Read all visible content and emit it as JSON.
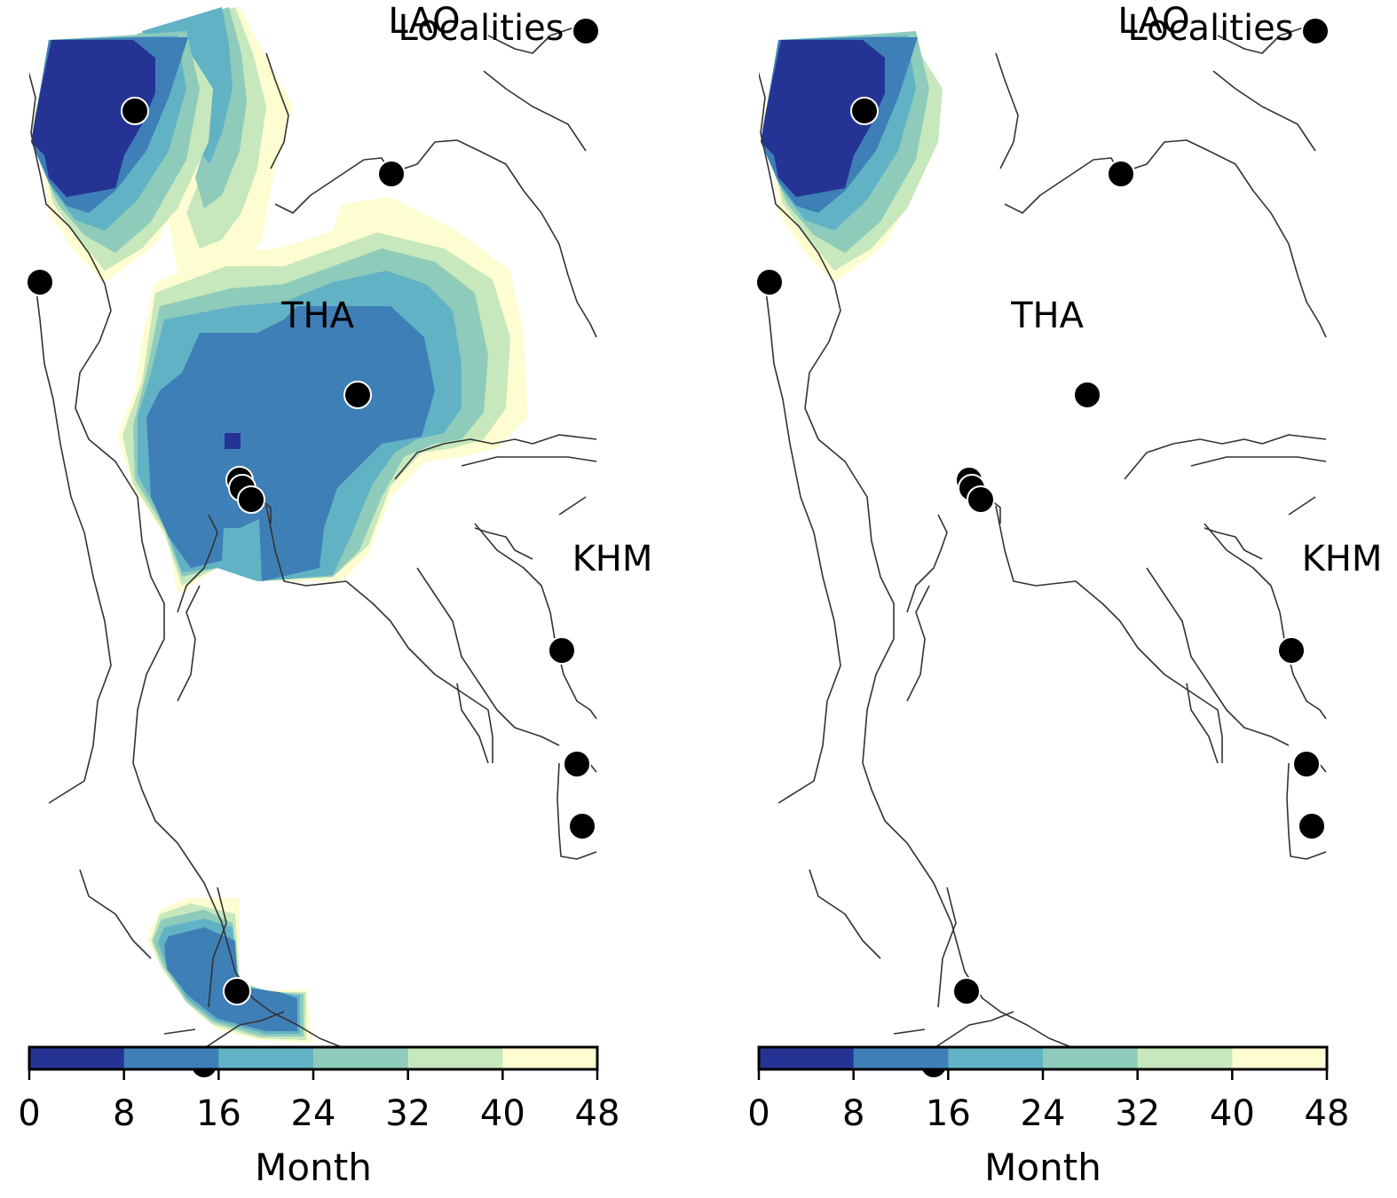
{
  "colorbar": {
    "label": "Month",
    "ticks": [
      0,
      8,
      16,
      24,
      32,
      40,
      48
    ],
    "min": 0,
    "max": 48,
    "colors": [
      "#253494",
      "#3f7fb7",
      "#62b2c6",
      "#8ecbbb",
      "#c7e7bd",
      "#fdfdd1"
    ]
  },
  "legend": {
    "label": "Localities"
  },
  "country_labels": [
    "LAO",
    "THA",
    "KHM"
  ],
  "panels": [
    {
      "name": "left",
      "fill_regions": [
        {
          "name": "north-east-band",
          "levels": [
            2,
            3,
            4,
            5
          ]
        },
        {
          "name": "north-west",
          "levels": [
            0,
            1,
            2,
            3,
            4,
            5
          ]
        },
        {
          "name": "central",
          "levels": [
            1,
            2,
            3,
            4,
            5
          ]
        },
        {
          "name": "south",
          "levels": [
            1,
            2,
            3,
            4,
            5
          ]
        }
      ],
      "isolated_cell": {
        "level": 0
      }
    },
    {
      "name": "right",
      "fill_regions": [
        {
          "name": "north-west",
          "levels": [
            0,
            1,
            2,
            3,
            4,
            5
          ]
        }
      ]
    }
  ],
  "localities": [
    {
      "id": "loc-1"
    },
    {
      "id": "loc-2"
    },
    {
      "id": "loc-3"
    },
    {
      "id": "loc-4"
    },
    {
      "id": "loc-5"
    },
    {
      "id": "loc-6"
    },
    {
      "id": "loc-7"
    },
    {
      "id": "loc-8"
    },
    {
      "id": "loc-9"
    },
    {
      "id": "loc-10"
    },
    {
      "id": "loc-11"
    },
    {
      "id": "loc-12"
    },
    {
      "id": "loc-13"
    }
  ]
}
